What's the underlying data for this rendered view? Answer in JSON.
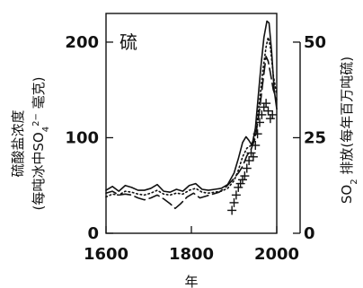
{
  "chart_data": {
    "type": "line",
    "annotation": "硫",
    "xlabel": "年",
    "ylabel_left_line1": "硫酸盐浓度",
    "ylabel_left_line2": "(每吨冰中SO",
    "ylabel_left_sub": "4",
    "ylabel_left_sup": "2−",
    "ylabel_left_line2_tail": " 毫克)",
    "ylabel_right_prefix": "SO",
    "ylabel_right_sub": "2",
    "ylabel_right_tail": " 排放(每年百万吨硫)",
    "xlim": [
      1600,
      2000
    ],
    "ylim_left": [
      0,
      230
    ],
    "ylim_right": [
      0,
      57.5
    ],
    "x_ticks": [
      1600,
      1800,
      2000
    ],
    "x_tick_labels": [
      "1600",
      "1800",
      "2000"
    ],
    "y_left_ticks": [
      0,
      100,
      200
    ],
    "y_left_tick_labels": [
      "0",
      "100",
      "200"
    ],
    "y_right_ticks": [
      0,
      25,
      50
    ],
    "y_right_tick_labels": [
      "0",
      "25",
      "50"
    ],
    "series": [
      {
        "style": "solid",
        "axis": "left",
        "points": [
          [
            1600,
            45
          ],
          [
            1615,
            49
          ],
          [
            1630,
            44
          ],
          [
            1645,
            50
          ],
          [
            1660,
            48
          ],
          [
            1675,
            45
          ],
          [
            1690,
            45
          ],
          [
            1705,
            47
          ],
          [
            1720,
            51
          ],
          [
            1735,
            44
          ],
          [
            1750,
            43
          ],
          [
            1765,
            46
          ],
          [
            1780,
            44
          ],
          [
            1795,
            50
          ],
          [
            1810,
            52
          ],
          [
            1825,
            46
          ],
          [
            1840,
            45
          ],
          [
            1855,
            46
          ],
          [
            1870,
            47
          ],
          [
            1885,
            51
          ],
          [
            1900,
            63
          ],
          [
            1910,
            78
          ],
          [
            1920,
            95
          ],
          [
            1928,
            101
          ],
          [
            1935,
            97
          ],
          [
            1942,
            92
          ],
          [
            1950,
            110
          ],
          [
            1957,
            145
          ],
          [
            1963,
            175
          ],
          [
            1970,
            205
          ],
          [
            1977,
            222
          ],
          [
            1982,
            220
          ],
          [
            1988,
            190
          ],
          [
            1994,
            150
          ],
          [
            2000,
            130
          ]
        ]
      },
      {
        "style": "dotted",
        "axis": "left",
        "points": [
          [
            1600,
            38
          ],
          [
            1615,
            41
          ],
          [
            1630,
            40
          ],
          [
            1645,
            44
          ],
          [
            1660,
            43
          ],
          [
            1675,
            41
          ],
          [
            1690,
            40
          ],
          [
            1705,
            42
          ],
          [
            1720,
            45
          ],
          [
            1735,
            41
          ],
          [
            1750,
            40
          ],
          [
            1765,
            42
          ],
          [
            1780,
            41
          ],
          [
            1795,
            45
          ],
          [
            1810,
            47
          ],
          [
            1825,
            43
          ],
          [
            1840,
            42
          ],
          [
            1855,
            43
          ],
          [
            1870,
            44
          ],
          [
            1885,
            47
          ],
          [
            1900,
            55
          ],
          [
            1910,
            66
          ],
          [
            1920,
            80
          ],
          [
            1930,
            89
          ],
          [
            1940,
            92
          ],
          [
            1950,
            103
          ],
          [
            1960,
            140
          ],
          [
            1968,
            172
          ],
          [
            1975,
            195
          ],
          [
            1980,
            205
          ],
          [
            1985,
            195
          ],
          [
            1992,
            165
          ],
          [
            2000,
            145
          ]
        ]
      },
      {
        "style": "dashed",
        "axis": "left",
        "points": [
          [
            1600,
            42
          ],
          [
            1615,
            44
          ],
          [
            1630,
            40
          ],
          [
            1645,
            41
          ],
          [
            1660,
            40
          ],
          [
            1675,
            37
          ],
          [
            1690,
            35
          ],
          [
            1705,
            37
          ],
          [
            1720,
            40
          ],
          [
            1735,
            36
          ],
          [
            1750,
            31
          ],
          [
            1762,
            26
          ],
          [
            1775,
            31
          ],
          [
            1790,
            38
          ],
          [
            1805,
            42
          ],
          [
            1820,
            37
          ],
          [
            1835,
            39
          ],
          [
            1850,
            41
          ],
          [
            1865,
            43
          ],
          [
            1880,
            48
          ],
          [
            1895,
            55
          ],
          [
            1910,
            63
          ],
          [
            1920,
            70
          ],
          [
            1930,
            81
          ],
          [
            1940,
            88
          ],
          [
            1950,
            100
          ],
          [
            1960,
            130
          ],
          [
            1968,
            160
          ],
          [
            1975,
            185
          ],
          [
            1980,
            180
          ],
          [
            1985,
            168
          ],
          [
            1992,
            150
          ],
          [
            2000,
            140
          ]
        ]
      },
      {
        "style": "plus",
        "axis": "right",
        "points": [
          [
            1895,
            6
          ],
          [
            1900,
            8
          ],
          [
            1905,
            10
          ],
          [
            1910,
            12
          ],
          [
            1915,
            13
          ],
          [
            1920,
            14
          ],
          [
            1925,
            15
          ],
          [
            1930,
            17
          ],
          [
            1935,
            19
          ],
          [
            1940,
            21
          ],
          [
            1945,
            20
          ],
          [
            1950,
            23
          ],
          [
            1955,
            26
          ],
          [
            1960,
            29
          ],
          [
            1965,
            31
          ],
          [
            1970,
            33
          ],
          [
            1975,
            34
          ],
          [
            1980,
            32
          ],
          [
            1985,
            30
          ],
          [
            1990,
            31
          ]
        ]
      }
    ]
  }
}
